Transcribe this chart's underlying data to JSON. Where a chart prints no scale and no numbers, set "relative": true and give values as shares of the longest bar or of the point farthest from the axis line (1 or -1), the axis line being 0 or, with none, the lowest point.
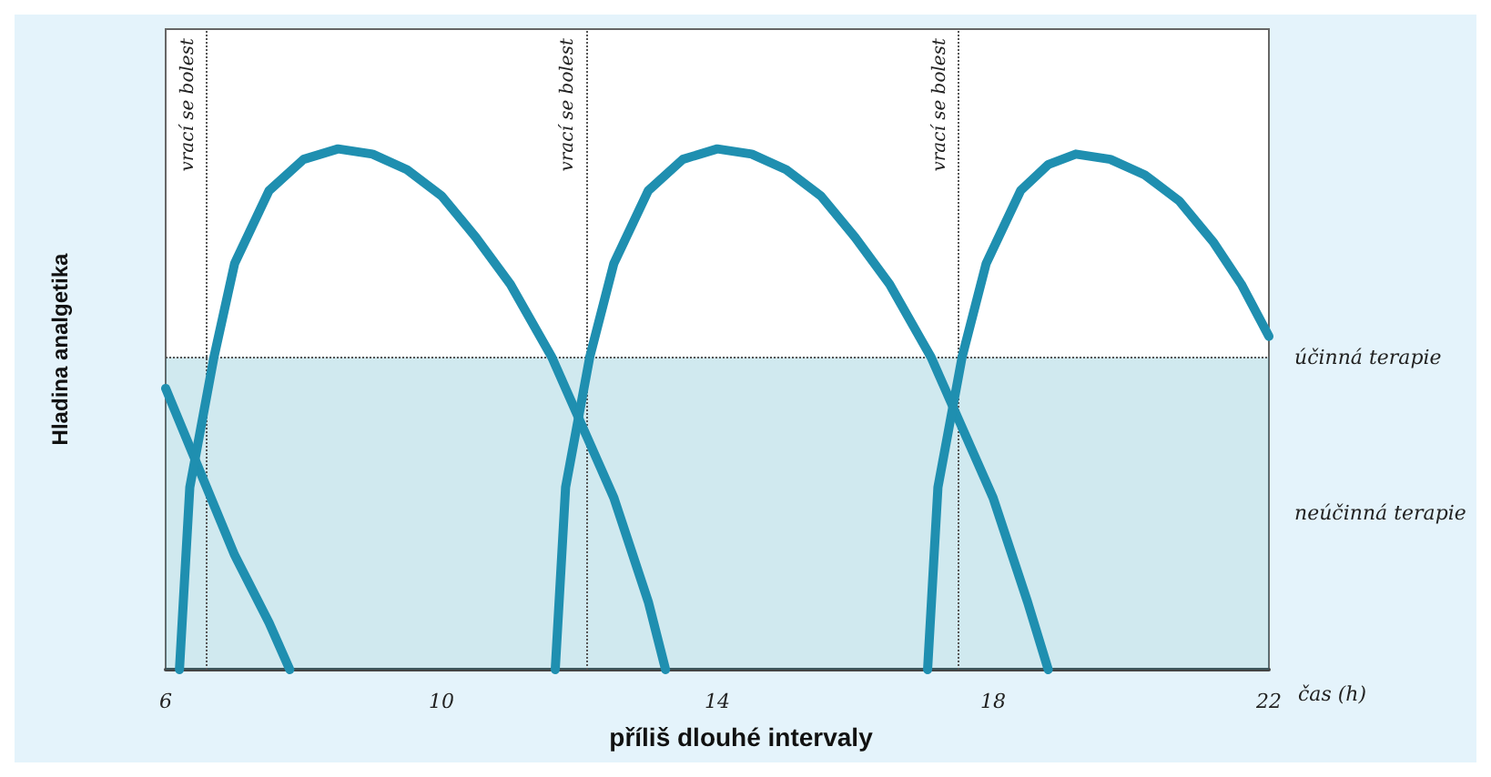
{
  "chart_data": {
    "type": "line",
    "relative": true,
    "title": "příliš dlouhé intervaly",
    "xlabel": "čas (h)",
    "ylabel": "Hladina analgetika",
    "xlim": [
      6,
      22
    ],
    "xticks": [
      6,
      10,
      14,
      18,
      22
    ],
    "marker": "none",
    "line_style": "solid",
    "series": [
      {
        "color": "#1f8fb0",
        "x": [
          6,
          6.5,
          7,
          7.5,
          7.8
        ],
        "values": [
          0.54,
          0.38,
          0.22,
          0.09,
          0
        ]
      },
      {
        "color": "#1f8fb0",
        "x": [
          6.2,
          6.35,
          6.7,
          7,
          7.5,
          8,
          8.5,
          9,
          9.5,
          10,
          10.5,
          11,
          11.6,
          12,
          12.5,
          13,
          13.25
        ],
        "values": [
          0,
          0.35,
          0.6,
          0.78,
          0.92,
          0.98,
          1,
          0.99,
          0.96,
          0.91,
          0.83,
          0.74,
          0.6,
          0.48,
          0.33,
          0.13,
          0
        ]
      },
      {
        "color": "#1f8fb0",
        "x": [
          11.65,
          11.8,
          12.15,
          12.5,
          13,
          13.5,
          14,
          14.5,
          15,
          15.5,
          16,
          16.5,
          17.1,
          17.5,
          18,
          18.5,
          18.8
        ],
        "values": [
          0,
          0.35,
          0.6,
          0.78,
          0.92,
          0.98,
          1,
          0.99,
          0.96,
          0.91,
          0.83,
          0.74,
          0.6,
          0.48,
          0.33,
          0.13,
          0
        ]
      },
      {
        "color": "#1f8fb0",
        "x": [
          17.05,
          17.2,
          17.55,
          17.9,
          18.4,
          18.8,
          19.2,
          19.7,
          20.2,
          20.7,
          21.2,
          21.6,
          22
        ],
        "values": [
          0,
          0.35,
          0.6,
          0.78,
          0.92,
          0.97,
          0.99,
          0.98,
          0.95,
          0.9,
          0.82,
          0.74,
          0.64
        ]
      }
    ],
    "ref_lines": [
      {
        "axis": "y",
        "value": 0.6,
        "label": "účinná terapie",
        "color": "#555555",
        "line_style": "dotted"
      },
      {
        "axis": "x",
        "value": 6.6,
        "label": "vrací se bolest",
        "color": "#555555",
        "line_style": "dotted"
      },
      {
        "axis": "x",
        "value": 12.1,
        "label": "vrací se bolest",
        "color": "#555555",
        "line_style": "dotted"
      },
      {
        "axis": "x",
        "value": 17.5,
        "label": "vrací se bolest",
        "color": "#555555",
        "line_style": "dotted"
      }
    ],
    "bands": [
      {
        "axis": "y",
        "from": 0,
        "to": 0.6,
        "label": "neúčinná terapie",
        "color": "#2a9bb5"
      }
    ]
  }
}
